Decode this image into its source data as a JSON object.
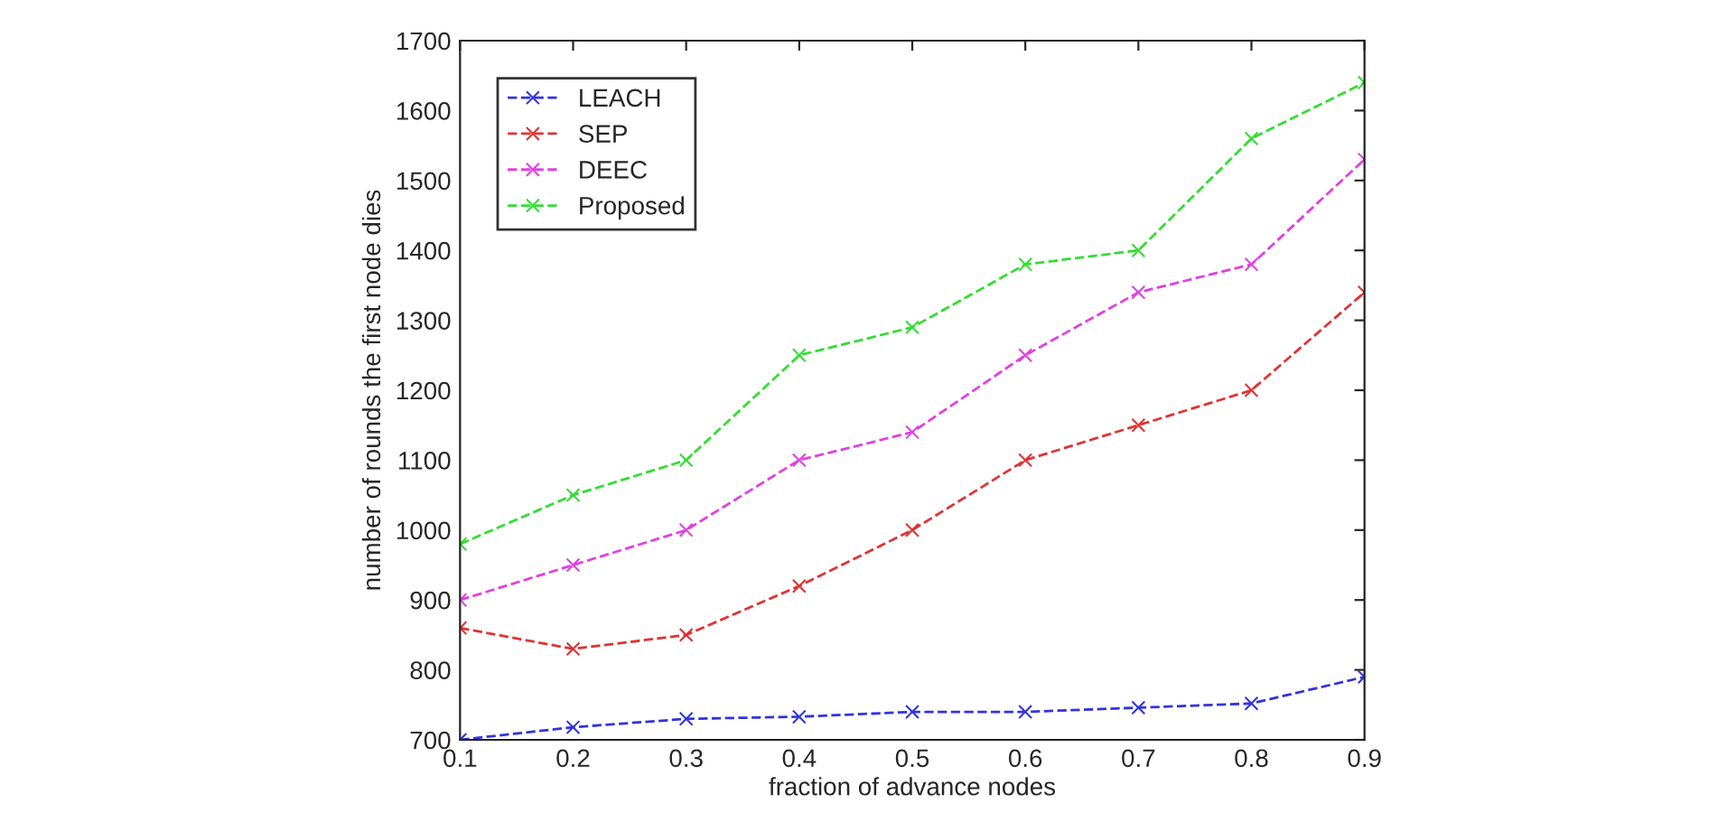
{
  "chart_data": {
    "type": "line",
    "xlabel": "fraction of advance nodes",
    "ylabel": "number of rounds the first node dies",
    "x": [
      0.1,
      0.2,
      0.3,
      0.4,
      0.5,
      0.6,
      0.7,
      0.8,
      0.9
    ],
    "series": [
      {
        "name": "LEACH",
        "color": "#3333dd",
        "values": [
          700,
          718,
          730,
          733,
          740,
          740,
          746,
          752,
          790
        ]
      },
      {
        "name": "SEP",
        "color": "#e03333",
        "values": [
          860,
          830,
          850,
          920,
          1000,
          1100,
          1150,
          1200,
          1340
        ]
      },
      {
        "name": "DEEC",
        "color": "#e040e0",
        "values": [
          900,
          950,
          1000,
          1100,
          1140,
          1250,
          1340,
          1380,
          1530
        ]
      },
      {
        "name": "Proposed",
        "color": "#33dd33",
        "values": [
          980,
          1050,
          1100,
          1250,
          1290,
          1380,
          1400,
          1560,
          1640
        ]
      }
    ],
    "xlim": [
      0.1,
      0.9
    ],
    "xticks": [
      0.1,
      0.2,
      0.3,
      0.4,
      0.5,
      0.6,
      0.7,
      0.8,
      0.9
    ],
    "ylim": [
      700,
      1700
    ],
    "yticks": [
      700,
      800,
      900,
      1000,
      1100,
      1200,
      1300,
      1400,
      1500,
      1600,
      1700
    ],
    "marker": "cross",
    "line_style": "dashed",
    "legend": "top left",
    "grid": false
  }
}
